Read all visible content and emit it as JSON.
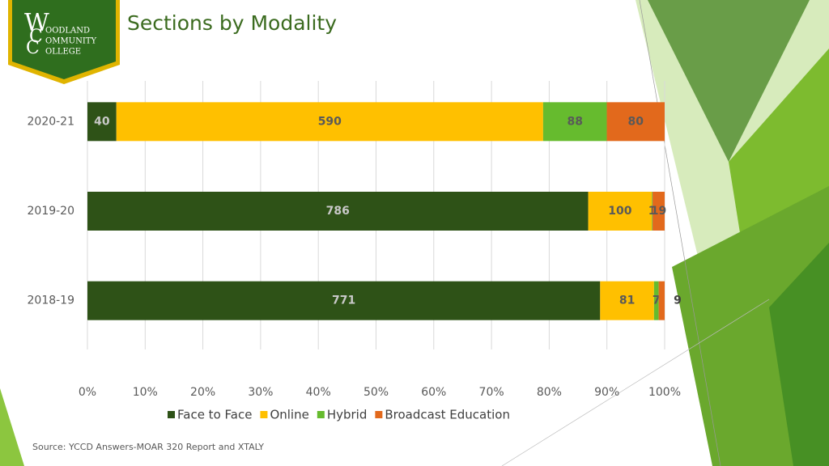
{
  "logo": {
    "initials": [
      "W",
      "C",
      "C"
    ],
    "lines": [
      "OODLAND",
      "OMMUNITY",
      "OLLEGE"
    ]
  },
  "chart_data": {
    "type": "bar",
    "orientation": "horizontal",
    "stacking": "percent",
    "title": "Sections by Modality",
    "categories": [
      "2020-21",
      "2019-20",
      "2018-19"
    ],
    "series": [
      {
        "name": "Face to Face",
        "color": "#2e5217",
        "label_color": "#c9c9c9",
        "values": [
          40,
          786,
          771
        ]
      },
      {
        "name": "Online",
        "color": "#ffc000",
        "label_color": "#595959",
        "values": [
          590,
          100,
          81
        ]
      },
      {
        "name": "Hybrid",
        "color": "#66bb2e",
        "label_color": "#595959",
        "values": [
          88,
          1,
          7
        ]
      },
      {
        "name": "Broadcast Education",
        "color": "#e2691c",
        "label_color": "#595959",
        "values": [
          80,
          19,
          9
        ]
      }
    ],
    "xlim": [
      0,
      100
    ],
    "xticks": [
      {
        "value": 0,
        "label": "0%"
      },
      {
        "value": 10,
        "label": "10%"
      },
      {
        "value": 20,
        "label": "20%"
      },
      {
        "value": 30,
        "label": "30%"
      },
      {
        "value": 40,
        "label": "40%"
      },
      {
        "value": 50,
        "label": "50%"
      },
      {
        "value": 60,
        "label": "60%"
      },
      {
        "value": 70,
        "label": "70%"
      },
      {
        "value": 80,
        "label": "80%"
      },
      {
        "value": 90,
        "label": "90%"
      },
      {
        "value": 100,
        "label": "100%"
      }
    ],
    "grid": true,
    "legend": "bottom",
    "source": "Source: YCCD Answers-MOAR 320 Report and XTALY"
  }
}
